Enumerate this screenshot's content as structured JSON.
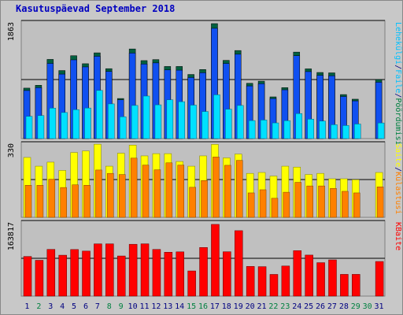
{
  "title": "Kasutuspäevad September 2018",
  "colors": {
    "hits": "#0080ff",
    "hits_top": "#006040",
    "files": "#00e0ff",
    "sites": "#ffff00",
    "visits": "#ff8000",
    "kbytes": "#ff0000",
    "weekend_label": "#008040",
    "weekday_label": "#000080",
    "panel_bg": "#c0c0c0",
    "grid": "#000000"
  },
  "chart_data": [
    {
      "type": "bar",
      "panel": "top",
      "title": "Kasutuspäevad September 2018",
      "ymax_label": "1863",
      "ylim": [
        0,
        1863
      ],
      "right_label": {
        "parts": [
          {
            "text": "Pöördumisi",
            "color": "#008040"
          },
          {
            "text": "/",
            "color": "#000080"
          },
          {
            "text": "Faile",
            "color": "#00c0ff"
          },
          {
            "text": "/",
            "color": "#000080"
          },
          {
            "text": "Lehekülgi",
            "color": "#00c0ff"
          }
        ]
      },
      "categories": [
        "1",
        "2",
        "3",
        "4",
        "5",
        "6",
        "7",
        "8",
        "9",
        "10",
        "11",
        "12",
        "13",
        "14",
        "15",
        "16",
        "17",
        "18",
        "19",
        "20",
        "21",
        "22",
        "23",
        "24",
        "25",
        "26",
        "27",
        "28",
        "29",
        "30",
        "31"
      ],
      "series": [
        {
          "name": "Pöördumisi",
          "values": [
            807,
            852,
            1266,
            1088,
            1325,
            1197,
            1371,
            1118,
            641,
            1433,
            1247,
            1263,
            1153,
            1153,
            1025,
            1104,
            1838,
            1251,
            1408,
            884,
            918,
            667,
            815,
            1383,
            1115,
            1057,
            1051,
            704,
            630,
            0,
            945
          ]
        },
        {
          "name": "Faile",
          "values": [
            769,
            815,
            1202,
            1031,
            1259,
            1146,
            1316,
            1073,
            620,
            1367,
            1192,
            1210,
            1098,
            1094,
            977,
            1053,
            1763,
            1201,
            1349,
            842,
            878,
            640,
            780,
            1325,
            1071,
            1012,
            1005,
            673,
            603,
            0,
            901
          ]
        },
        {
          "name": "Lehekülgi",
          "values": [
            356,
            368,
            487,
            417,
            463,
            489,
            770,
            555,
            349,
            530,
            680,
            540,
            620,
            590,
            535,
            433,
            700,
            470,
            530,
            288,
            297,
            251,
            287,
            400,
            311,
            280,
            222,
            209,
            233,
            0,
            250
          ]
        }
      ]
    },
    {
      "type": "bar",
      "panel": "middle",
      "ymax_label": "330",
      "ylim": [
        0,
        330
      ],
      "right_label": {
        "parts": [
          {
            "text": "Külastusi",
            "color": "#ff8000"
          },
          {
            "text": "/",
            "color": "#000080"
          },
          {
            "text": "Saite",
            "color": "#ffff00"
          }
        ]
      },
      "categories": [
        "1",
        "2",
        "3",
        "4",
        "5",
        "6",
        "7",
        "8",
        "9",
        "10",
        "11",
        "12",
        "13",
        "14",
        "15",
        "16",
        "17",
        "18",
        "19",
        "20",
        "21",
        "22",
        "23",
        "24",
        "25",
        "26",
        "27",
        "28",
        "29",
        "30",
        "31"
      ],
      "series": [
        {
          "name": "Saite",
          "values": [
            267,
            228,
            246,
            209,
            289,
            296,
            326,
            228,
            286,
            322,
            274,
            284,
            284,
            249,
            228,
            274,
            325,
            265,
            282,
            196,
            200,
            184,
            228,
            224,
            191,
            196,
            172,
            172,
            168,
            0,
            200
          ]
        },
        {
          "name": "Külastusi",
          "values": [
            143,
            143,
            170,
            133,
            145,
            143,
            211,
            196,
            191,
            264,
            233,
            212,
            243,
            233,
            134,
            164,
            269,
            232,
            254,
            109,
            123,
            85,
            112,
            156,
            140,
            140,
            129,
            116,
            109,
            0,
            136
          ]
        }
      ]
    },
    {
      "type": "bar",
      "panel": "bottom",
      "ymax_label": "163817",
      "ylim": [
        0,
        163817
      ],
      "right_label": {
        "parts": [
          {
            "text": "KBaite",
            "color": "#ff0000"
          }
        ]
      },
      "categories": [
        "1",
        "2",
        "3",
        "4",
        "5",
        "6",
        "7",
        "8",
        "9",
        "10",
        "11",
        "12",
        "13",
        "14",
        "15",
        "16",
        "17",
        "18",
        "19",
        "20",
        "21",
        "22",
        "23",
        "24",
        "25",
        "26",
        "27",
        "28",
        "29",
        "30",
        "31"
      ],
      "series": [
        {
          "name": "KBaite",
          "values": [
            87700,
            79300,
            103400,
            90500,
            103100,
            99600,
            115600,
            115600,
            88800,
            114700,
            115700,
            103300,
            97100,
            97900,
            55700,
            107600,
            158700,
            98200,
            144800,
            65700,
            65200,
            48000,
            66600,
            100600,
            90800,
            74000,
            80200,
            48100,
            48100,
            0,
            76600
          ]
        }
      ]
    }
  ],
  "weekend_days": [
    "2",
    "8",
    "9",
    "15",
    "16",
    "22",
    "23",
    "29",
    "30"
  ]
}
